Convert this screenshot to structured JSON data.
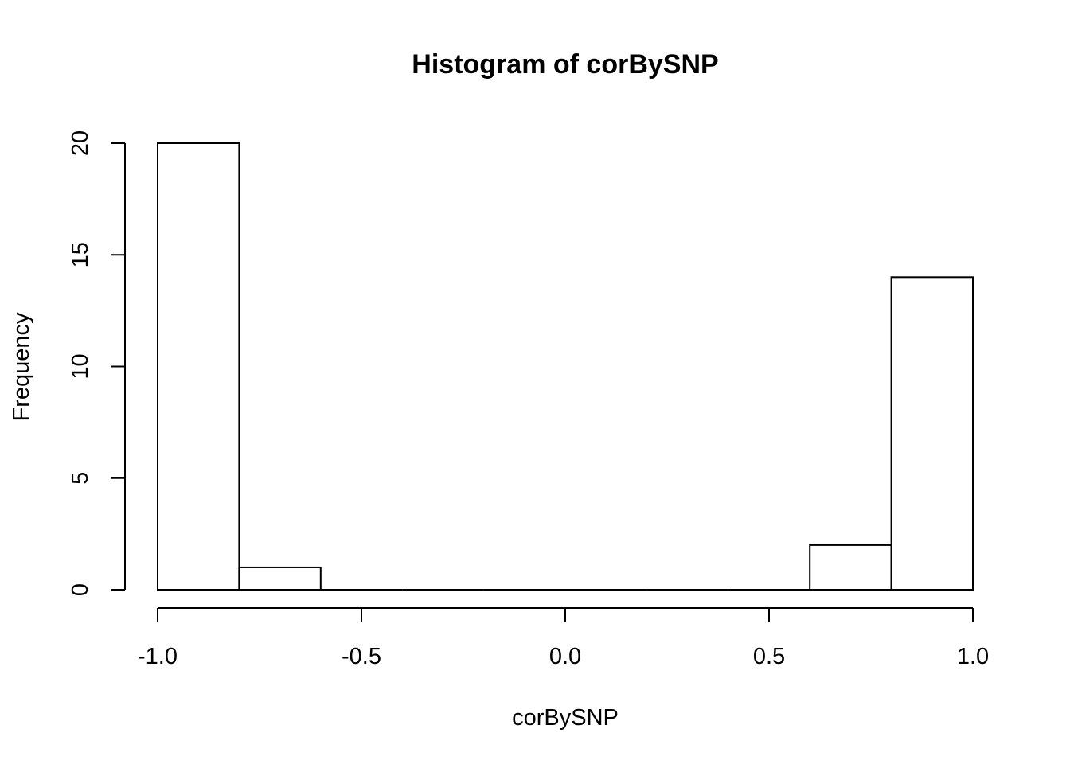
{
  "chart_data": {
    "type": "bar",
    "title": "Histogram of corBySNP",
    "xlabel": "corBySNP",
    "ylabel": "Frequency",
    "bins": [
      {
        "x0": -1.0,
        "x1": -0.8,
        "count": 20
      },
      {
        "x0": -0.8,
        "x1": -0.6,
        "count": 1
      },
      {
        "x0": -0.6,
        "x1": -0.4,
        "count": 0
      },
      {
        "x0": -0.4,
        "x1": -0.2,
        "count": 0
      },
      {
        "x0": -0.2,
        "x1": 0.0,
        "count": 0
      },
      {
        "x0": 0.0,
        "x1": 0.2,
        "count": 0
      },
      {
        "x0": 0.2,
        "x1": 0.4,
        "count": 0
      },
      {
        "x0": 0.4,
        "x1": 0.6,
        "count": 0
      },
      {
        "x0": 0.6,
        "x1": 0.8,
        "count": 2
      },
      {
        "x0": 0.8,
        "x1": 1.0,
        "count": 14
      }
    ],
    "xlim": [
      -1.0,
      1.0
    ],
    "ylim": [
      0,
      20
    ],
    "x_ticks": [
      -1.0,
      -0.5,
      0.0,
      0.5,
      1.0
    ],
    "x_tick_labels": [
      "-1.0",
      "-0.5",
      "0.0",
      "0.5",
      "1.0"
    ],
    "y_ticks": [
      0,
      5,
      10,
      15,
      20
    ],
    "y_tick_labels": [
      "0",
      "5",
      "10",
      "15",
      "20"
    ],
    "grid": false,
    "legend": "none"
  }
}
